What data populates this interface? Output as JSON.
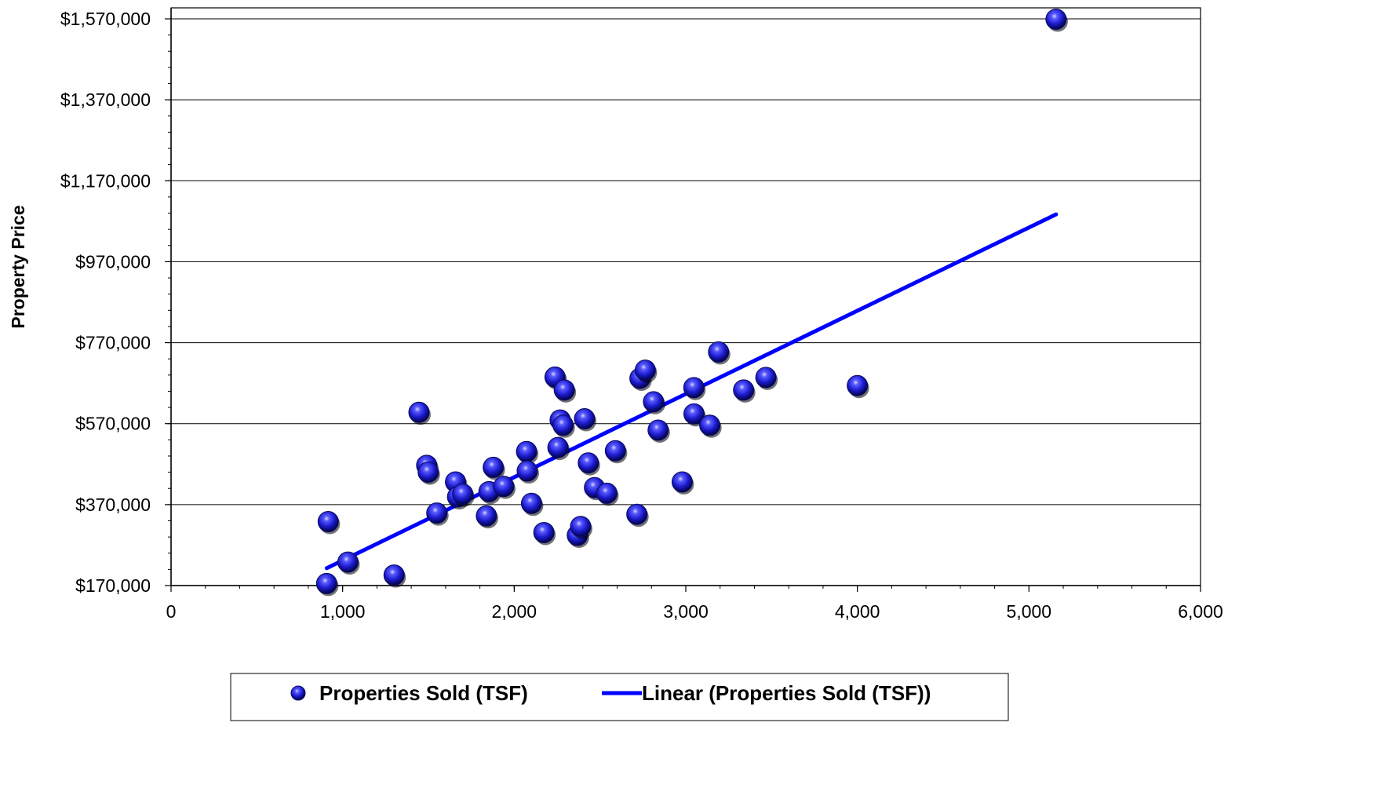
{
  "chart_data": {
    "type": "scatter",
    "title": "",
    "xlabel": "",
    "ylabel": "Property Price",
    "xlim": [
      0,
      6000
    ],
    "ylim": [
      170000,
      1570000
    ],
    "x_ticks": [
      0,
      1000,
      2000,
      3000,
      4000,
      5000,
      6000
    ],
    "x_tick_labels": [
      "0",
      "1,000",
      "2,000",
      "3,000",
      "4,000",
      "5,000",
      "6,000"
    ],
    "y_ticks": [
      170000,
      370000,
      570000,
      770000,
      970000,
      1170000,
      1370000,
      1570000
    ],
    "y_tick_labels": [
      "$170,000",
      "$370,000",
      "$570,000",
      "$770,000",
      "$970,000",
      "$1,170,000",
      "$1,370,000",
      "$1,570,000"
    ],
    "grid": "horizontal",
    "legend_position": "bottom",
    "colors": {
      "points": "#1a1acc",
      "trendline": "#0000ff",
      "grid": "#000000"
    },
    "series": [
      {
        "name": "Properties Sold  (TSF)",
        "type": "scatter",
        "points": [
          [
            907,
            175000
          ],
          [
            916,
            328000
          ],
          [
            1031,
            228000
          ],
          [
            1300,
            196000
          ],
          [
            1445,
            598000
          ],
          [
            1490,
            467000
          ],
          [
            1499,
            450000
          ],
          [
            1549,
            349000
          ],
          [
            1658,
            426000
          ],
          [
            1670,
            389000
          ],
          [
            1700,
            396000
          ],
          [
            1838,
            342000
          ],
          [
            1853,
            402000
          ],
          [
            1878,
            462000
          ],
          [
            1939,
            415000
          ],
          [
            2072,
            501000
          ],
          [
            2076,
            453000
          ],
          [
            2101,
            373000
          ],
          [
            2173,
            301000
          ],
          [
            2238,
            685000
          ],
          [
            2255,
            511000
          ],
          [
            2268,
            579000
          ],
          [
            2285,
            566000
          ],
          [
            2292,
            653000
          ],
          [
            2368,
            294000
          ],
          [
            2387,
            316000
          ],
          [
            2410,
            582000
          ],
          [
            2432,
            473000
          ],
          [
            2468,
            412000
          ],
          [
            2540,
            398000
          ],
          [
            2590,
            503000
          ],
          [
            2715,
            346000
          ],
          [
            2733,
            682000
          ],
          [
            2764,
            702000
          ],
          [
            2812,
            624000
          ],
          [
            2839,
            554000
          ],
          [
            2979,
            426000
          ],
          [
            3047,
            659000
          ],
          [
            3048,
            594000
          ],
          [
            3140,
            566000
          ],
          [
            3191,
            747000
          ],
          [
            3337,
            653000
          ],
          [
            3467,
            684000
          ],
          [
            4000,
            664000
          ],
          [
            5158,
            1569000
          ]
        ]
      },
      {
        "name": "Linear (Properties Sold  (TSF))",
        "type": "line",
        "points": [
          [
            907,
            213000
          ],
          [
            5158,
            1087000
          ]
        ]
      }
    ]
  }
}
